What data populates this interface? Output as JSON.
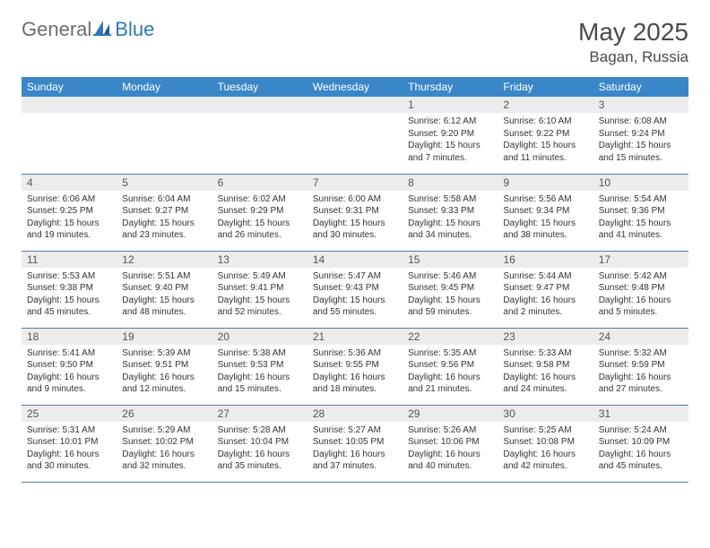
{
  "brand": {
    "part1": "General",
    "part2": "Blue"
  },
  "title": "May 2025",
  "location": "Bagan, Russia",
  "colors": {
    "header_bg": "#3a87c8",
    "header_text": "#ffffff",
    "daynum_bg": "#ececec",
    "row_border": "#5a7a9a",
    "logo_gray": "#6d6d6d",
    "logo_blue": "#2e78b7"
  },
  "day_headers": [
    "Sunday",
    "Monday",
    "Tuesday",
    "Wednesday",
    "Thursday",
    "Friday",
    "Saturday"
  ],
  "weeks": [
    [
      {
        "n": "",
        "sr": "",
        "ss": "",
        "dl": ""
      },
      {
        "n": "",
        "sr": "",
        "ss": "",
        "dl": ""
      },
      {
        "n": "",
        "sr": "",
        "ss": "",
        "dl": ""
      },
      {
        "n": "",
        "sr": "",
        "ss": "",
        "dl": ""
      },
      {
        "n": "1",
        "sr": "Sunrise: 6:12 AM",
        "ss": "Sunset: 9:20 PM",
        "dl": "Daylight: 15 hours and 7 minutes."
      },
      {
        "n": "2",
        "sr": "Sunrise: 6:10 AM",
        "ss": "Sunset: 9:22 PM",
        "dl": "Daylight: 15 hours and 11 minutes."
      },
      {
        "n": "3",
        "sr": "Sunrise: 6:08 AM",
        "ss": "Sunset: 9:24 PM",
        "dl": "Daylight: 15 hours and 15 minutes."
      }
    ],
    [
      {
        "n": "4",
        "sr": "Sunrise: 6:06 AM",
        "ss": "Sunset: 9:25 PM",
        "dl": "Daylight: 15 hours and 19 minutes."
      },
      {
        "n": "5",
        "sr": "Sunrise: 6:04 AM",
        "ss": "Sunset: 9:27 PM",
        "dl": "Daylight: 15 hours and 23 minutes."
      },
      {
        "n": "6",
        "sr": "Sunrise: 6:02 AM",
        "ss": "Sunset: 9:29 PM",
        "dl": "Daylight: 15 hours and 26 minutes."
      },
      {
        "n": "7",
        "sr": "Sunrise: 6:00 AM",
        "ss": "Sunset: 9:31 PM",
        "dl": "Daylight: 15 hours and 30 minutes."
      },
      {
        "n": "8",
        "sr": "Sunrise: 5:58 AM",
        "ss": "Sunset: 9:33 PM",
        "dl": "Daylight: 15 hours and 34 minutes."
      },
      {
        "n": "9",
        "sr": "Sunrise: 5:56 AM",
        "ss": "Sunset: 9:34 PM",
        "dl": "Daylight: 15 hours and 38 minutes."
      },
      {
        "n": "10",
        "sr": "Sunrise: 5:54 AM",
        "ss": "Sunset: 9:36 PM",
        "dl": "Daylight: 15 hours and 41 minutes."
      }
    ],
    [
      {
        "n": "11",
        "sr": "Sunrise: 5:53 AM",
        "ss": "Sunset: 9:38 PM",
        "dl": "Daylight: 15 hours and 45 minutes."
      },
      {
        "n": "12",
        "sr": "Sunrise: 5:51 AM",
        "ss": "Sunset: 9:40 PM",
        "dl": "Daylight: 15 hours and 48 minutes."
      },
      {
        "n": "13",
        "sr": "Sunrise: 5:49 AM",
        "ss": "Sunset: 9:41 PM",
        "dl": "Daylight: 15 hours and 52 minutes."
      },
      {
        "n": "14",
        "sr": "Sunrise: 5:47 AM",
        "ss": "Sunset: 9:43 PM",
        "dl": "Daylight: 15 hours and 55 minutes."
      },
      {
        "n": "15",
        "sr": "Sunrise: 5:46 AM",
        "ss": "Sunset: 9:45 PM",
        "dl": "Daylight: 15 hours and 59 minutes."
      },
      {
        "n": "16",
        "sr": "Sunrise: 5:44 AM",
        "ss": "Sunset: 9:47 PM",
        "dl": "Daylight: 16 hours and 2 minutes."
      },
      {
        "n": "17",
        "sr": "Sunrise: 5:42 AM",
        "ss": "Sunset: 9:48 PM",
        "dl": "Daylight: 16 hours and 5 minutes."
      }
    ],
    [
      {
        "n": "18",
        "sr": "Sunrise: 5:41 AM",
        "ss": "Sunset: 9:50 PM",
        "dl": "Daylight: 16 hours and 9 minutes."
      },
      {
        "n": "19",
        "sr": "Sunrise: 5:39 AM",
        "ss": "Sunset: 9:51 PM",
        "dl": "Daylight: 16 hours and 12 minutes."
      },
      {
        "n": "20",
        "sr": "Sunrise: 5:38 AM",
        "ss": "Sunset: 9:53 PM",
        "dl": "Daylight: 16 hours and 15 minutes."
      },
      {
        "n": "21",
        "sr": "Sunrise: 5:36 AM",
        "ss": "Sunset: 9:55 PM",
        "dl": "Daylight: 16 hours and 18 minutes."
      },
      {
        "n": "22",
        "sr": "Sunrise: 5:35 AM",
        "ss": "Sunset: 9:56 PM",
        "dl": "Daylight: 16 hours and 21 minutes."
      },
      {
        "n": "23",
        "sr": "Sunrise: 5:33 AM",
        "ss": "Sunset: 9:58 PM",
        "dl": "Daylight: 16 hours and 24 minutes."
      },
      {
        "n": "24",
        "sr": "Sunrise: 5:32 AM",
        "ss": "Sunset: 9:59 PM",
        "dl": "Daylight: 16 hours and 27 minutes."
      }
    ],
    [
      {
        "n": "25",
        "sr": "Sunrise: 5:31 AM",
        "ss": "Sunset: 10:01 PM",
        "dl": "Daylight: 16 hours and 30 minutes."
      },
      {
        "n": "26",
        "sr": "Sunrise: 5:29 AM",
        "ss": "Sunset: 10:02 PM",
        "dl": "Daylight: 16 hours and 32 minutes."
      },
      {
        "n": "27",
        "sr": "Sunrise: 5:28 AM",
        "ss": "Sunset: 10:04 PM",
        "dl": "Daylight: 16 hours and 35 minutes."
      },
      {
        "n": "28",
        "sr": "Sunrise: 5:27 AM",
        "ss": "Sunset: 10:05 PM",
        "dl": "Daylight: 16 hours and 37 minutes."
      },
      {
        "n": "29",
        "sr": "Sunrise: 5:26 AM",
        "ss": "Sunset: 10:06 PM",
        "dl": "Daylight: 16 hours and 40 minutes."
      },
      {
        "n": "30",
        "sr": "Sunrise: 5:25 AM",
        "ss": "Sunset: 10:08 PM",
        "dl": "Daylight: 16 hours and 42 minutes."
      },
      {
        "n": "31",
        "sr": "Sunrise: 5:24 AM",
        "ss": "Sunset: 10:09 PM",
        "dl": "Daylight: 16 hours and 45 minutes."
      }
    ]
  ]
}
